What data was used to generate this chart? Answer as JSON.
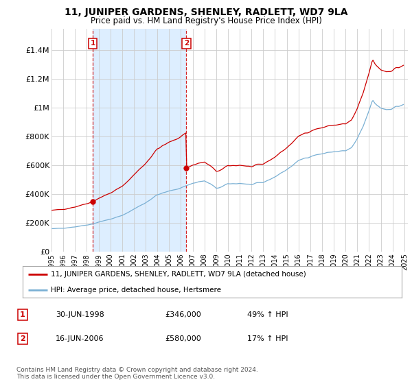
{
  "title": "11, JUNIPER GARDENS, SHENLEY, RADLETT, WD7 9LA",
  "subtitle": "Price paid vs. HM Land Registry's House Price Index (HPI)",
  "ylabel_ticks": [
    "£0",
    "£200K",
    "£400K",
    "£600K",
    "£800K",
    "£1M",
    "£1.2M",
    "£1.4M"
  ],
  "ytick_values": [
    0,
    200000,
    400000,
    600000,
    800000,
    1000000,
    1200000,
    1400000
  ],
  "ylim": [
    0,
    1550000
  ],
  "xlim_start": 1995.0,
  "xlim_end": 2025.3,
  "sale_dates": [
    1998.5,
    2006.46
  ],
  "sale_prices": [
    346000,
    580000
  ],
  "sale_labels": [
    "1",
    "2"
  ],
  "red_line_color": "#cc0000",
  "blue_line_color": "#7ab0d4",
  "shade_color": "#ddeeff",
  "marker_color": "#cc0000",
  "dashed_vline_color": "#cc0000",
  "legend_label_red": "11, JUNIPER GARDENS, SHENLEY, RADLETT, WD7 9LA (detached house)",
  "legend_label_blue": "HPI: Average price, detached house, Hertsmere",
  "table_row1": [
    "1",
    "30-JUN-1998",
    "£346,000",
    "49% ↑ HPI"
  ],
  "table_row2": [
    "2",
    "16-JUN-2006",
    "£580,000",
    "17% ↑ HPI"
  ],
  "footer": "Contains HM Land Registry data © Crown copyright and database right 2024.\nThis data is licensed under the Open Government Licence v3.0.",
  "background_color": "#ffffff",
  "grid_color": "#cccccc"
}
